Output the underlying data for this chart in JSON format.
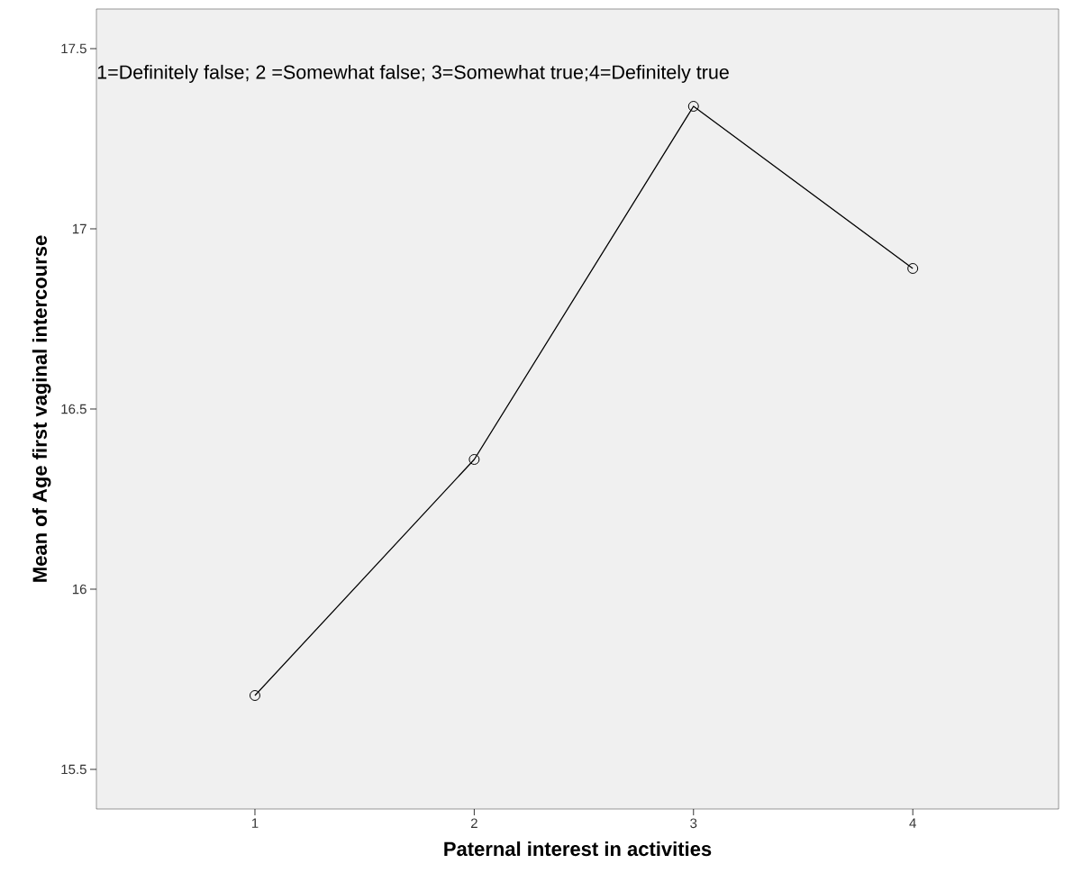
{
  "chart_data": {
    "type": "line",
    "xlabel": "Paternal interest in activities",
    "ylabel": "Mean of Age first vaginal intercourse",
    "annotations": [
      "1=Definitely false; 2 =Somewhat false; 3=Somewhat true;4=Definitely true"
    ],
    "categories": [
      "1",
      "2",
      "3",
      "4"
    ],
    "series": [
      {
        "color": "#000000",
        "values": [
          15.705,
          16.36,
          17.34,
          16.89
        ]
      }
    ],
    "ylim": [
      15.39,
      17.61
    ],
    "yticks": [
      15.5,
      16,
      16.5,
      17,
      17.5
    ],
    "marker": "circle",
    "line_style": "solid",
    "grid": false
  }
}
